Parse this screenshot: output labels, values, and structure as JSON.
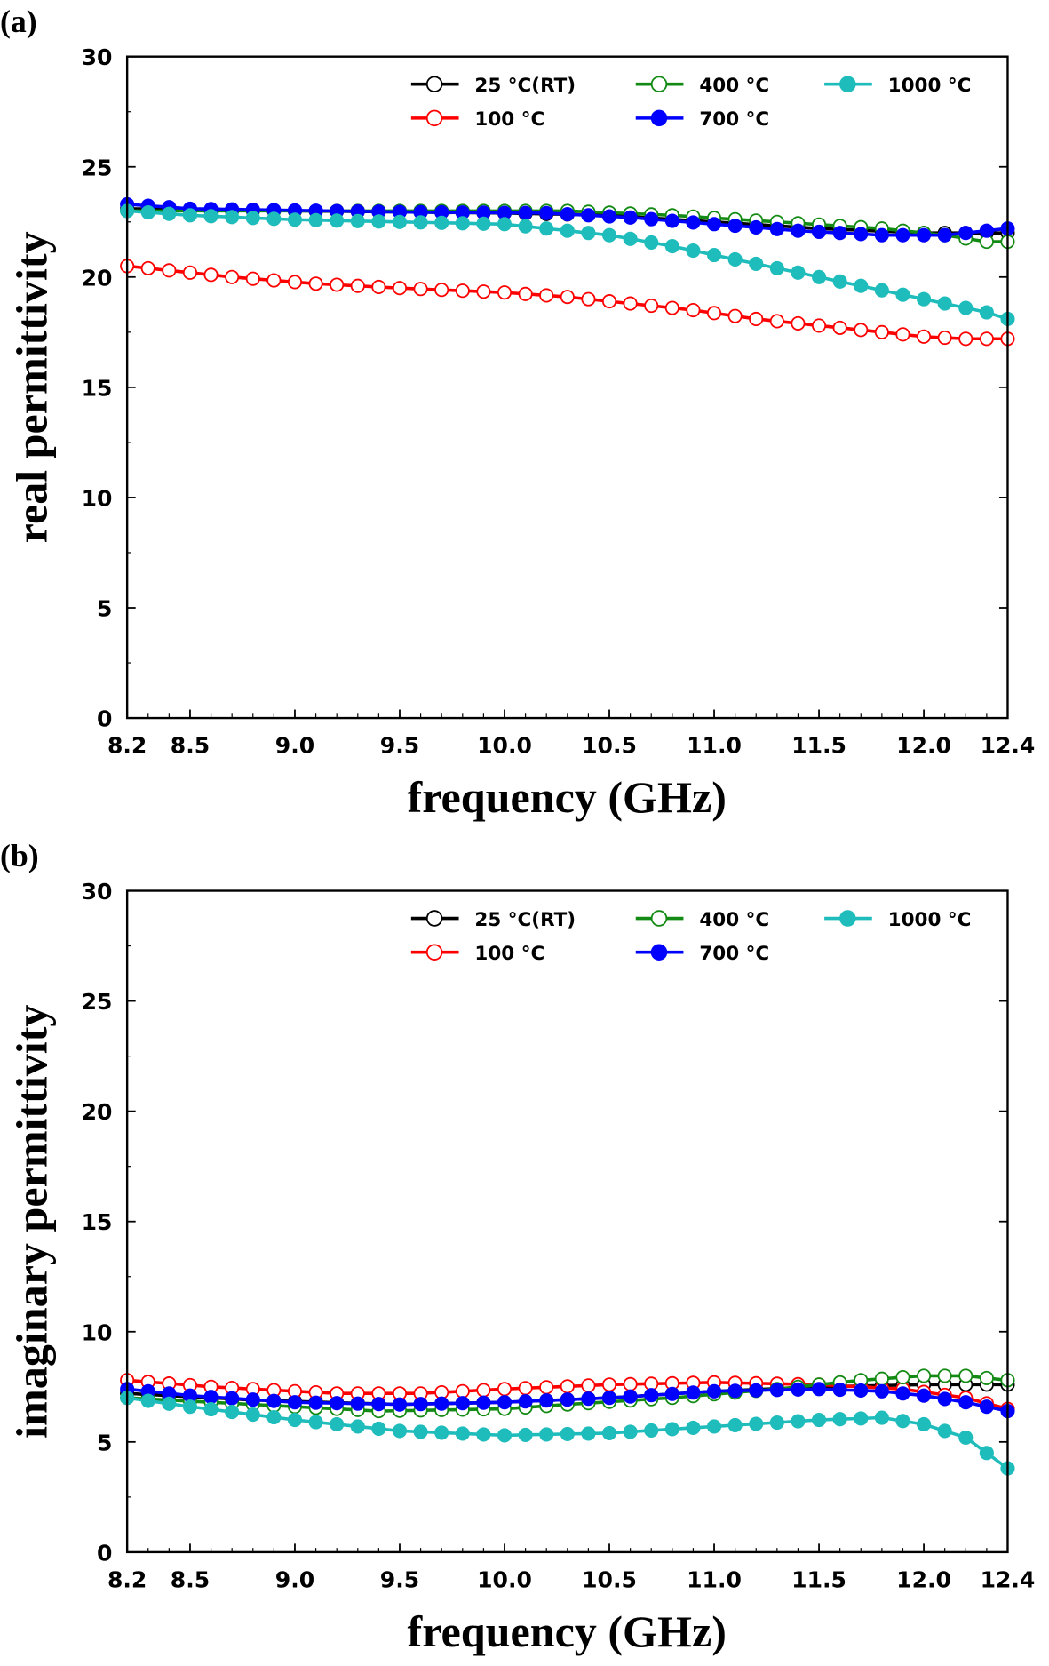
{
  "chart_data": [
    {
      "type": "line",
      "panel_label": "(a)",
      "xlabel": "frequency (GHz)",
      "ylabel": "real permittivity",
      "xlim": [
        8.2,
        12.4
      ],
      "ylim": [
        0,
        30
      ],
      "xticks": [
        "8.2",
        "8.5",
        "9.0",
        "9.5",
        "10.0",
        "10.5",
        "11.0",
        "11.5",
        "12.0",
        "12.4"
      ],
      "yticks": [
        "0",
        "5",
        "10",
        "15",
        "20",
        "25",
        "30"
      ],
      "x_step": 0.1,
      "grid": false,
      "legend_position": "top-right",
      "series": [
        {
          "name": "25 °C(RT)",
          "color": "#000000",
          "filled": false,
          "points": [
            [
              8.2,
              23.1
            ],
            [
              9.0,
              23.0
            ],
            [
              10.0,
              22.9
            ],
            [
              10.5,
              22.8
            ],
            [
              11.0,
              22.5
            ],
            [
              11.5,
              22.2
            ],
            [
              12.0,
              22.0
            ],
            [
              12.4,
              22.0
            ]
          ]
        },
        {
          "name": "100 °C",
          "color": "#ff0000",
          "filled": false,
          "points": [
            [
              8.2,
              20.5
            ],
            [
              8.4,
              20.3
            ],
            [
              8.7,
              20.0
            ],
            [
              9.1,
              19.7
            ],
            [
              9.5,
              19.5
            ],
            [
              10.0,
              19.3
            ],
            [
              10.3,
              19.1
            ],
            [
              10.6,
              18.8
            ],
            [
              10.9,
              18.5
            ],
            [
              11.2,
              18.1
            ],
            [
              11.5,
              17.8
            ],
            [
              11.8,
              17.5
            ],
            [
              12.0,
              17.3
            ],
            [
              12.2,
              17.2
            ],
            [
              12.4,
              17.2
            ]
          ]
        },
        {
          "name": "400 °C",
          "color": "#138a13",
          "filled": false,
          "points": [
            [
              8.2,
              23.0
            ],
            [
              9.0,
              23.0
            ],
            [
              10.3,
              23.0
            ],
            [
              10.8,
              22.8
            ],
            [
              11.3,
              22.5
            ],
            [
              11.8,
              22.2
            ],
            [
              12.1,
              21.9
            ],
            [
              12.3,
              21.6
            ],
            [
              12.4,
              21.6
            ]
          ]
        },
        {
          "name": "700 °C",
          "color": "#0000ff",
          "filled": true,
          "points": [
            [
              8.2,
              23.3
            ],
            [
              8.5,
              23.1
            ],
            [
              9.5,
              22.95
            ],
            [
              10.2,
              22.9
            ],
            [
              10.6,
              22.7
            ],
            [
              11.0,
              22.4
            ],
            [
              11.4,
              22.1
            ],
            [
              11.8,
              21.9
            ],
            [
              12.1,
              21.9
            ],
            [
              12.3,
              22.1
            ],
            [
              12.4,
              22.2
            ]
          ]
        },
        {
          "name": "1000 °C",
          "color": "#1fbcbc",
          "filled": true,
          "points": [
            [
              8.2,
              23.0
            ],
            [
              8.5,
              22.8
            ],
            [
              9.0,
              22.6
            ],
            [
              9.5,
              22.5
            ],
            [
              10.0,
              22.4
            ],
            [
              10.2,
              22.2
            ],
            [
              10.5,
              21.9
            ],
            [
              10.8,
              21.4
            ],
            [
              11.0,
              21.0
            ],
            [
              11.3,
              20.4
            ],
            [
              11.6,
              19.8
            ],
            [
              11.9,
              19.2
            ],
            [
              12.1,
              18.8
            ],
            [
              12.3,
              18.4
            ],
            [
              12.4,
              18.1
            ]
          ]
        }
      ]
    },
    {
      "type": "line",
      "panel_label": "(b)",
      "xlabel": "frequency (GHz)",
      "ylabel": "imaginary permittivity",
      "xlim": [
        8.2,
        12.4
      ],
      "ylim": [
        0,
        30
      ],
      "xticks": [
        "8.2",
        "8.5",
        "9.0",
        "9.5",
        "10.0",
        "10.5",
        "11.0",
        "11.5",
        "12.0",
        "12.4"
      ],
      "yticks": [
        "0",
        "5",
        "10",
        "15",
        "20",
        "25",
        "30"
      ],
      "x_step": 0.1,
      "grid": false,
      "legend_position": "top-right",
      "series": [
        {
          "name": "25 °C(RT)",
          "color": "#000000",
          "filled": false,
          "points": [
            [
              8.2,
              7.2
            ],
            [
              8.8,
              6.9
            ],
            [
              9.5,
              6.7
            ],
            [
              10.0,
              6.8
            ],
            [
              10.5,
              7.0
            ],
            [
              11.0,
              7.3
            ],
            [
              11.5,
              7.5
            ],
            [
              12.0,
              7.6
            ],
            [
              12.4,
              7.6
            ]
          ]
        },
        {
          "name": "100 °C",
          "color": "#ff0000",
          "filled": false,
          "points": [
            [
              8.2,
              7.8
            ],
            [
              8.6,
              7.5
            ],
            [
              9.2,
              7.2
            ],
            [
              9.6,
              7.2
            ],
            [
              10.0,
              7.4
            ],
            [
              10.5,
              7.6
            ],
            [
              11.0,
              7.7
            ],
            [
              11.5,
              7.6
            ],
            [
              11.9,
              7.4
            ],
            [
              12.2,
              7.0
            ],
            [
              12.4,
              6.5
            ]
          ]
        },
        {
          "name": "400 °C",
          "color": "#138a13",
          "filled": false,
          "points": [
            [
              8.2,
              7.0
            ],
            [
              8.8,
              6.7
            ],
            [
              9.4,
              6.4
            ],
            [
              10.0,
              6.5
            ],
            [
              10.3,
              6.7
            ],
            [
              10.8,
              7.0
            ],
            [
              11.3,
              7.4
            ],
            [
              11.7,
              7.8
            ],
            [
              12.0,
              8.0
            ],
            [
              12.2,
              8.0
            ],
            [
              12.4,
              7.8
            ]
          ]
        },
        {
          "name": "700 °C",
          "color": "#0000ff",
          "filled": true,
          "points": [
            [
              8.2,
              7.4
            ],
            [
              8.5,
              7.1
            ],
            [
              9.0,
              6.8
            ],
            [
              9.5,
              6.7
            ],
            [
              10.0,
              6.8
            ],
            [
              10.5,
              7.0
            ],
            [
              11.0,
              7.3
            ],
            [
              11.5,
              7.4
            ],
            [
              11.8,
              7.3
            ],
            [
              12.0,
              7.1
            ],
            [
              12.2,
              6.8
            ],
            [
              12.4,
              6.4
            ]
          ]
        },
        {
          "name": "1000 °C",
          "color": "#1fbcbc",
          "filled": true,
          "points": [
            [
              8.2,
              7.0
            ],
            [
              8.5,
              6.6
            ],
            [
              9.0,
              6.0
            ],
            [
              9.5,
              5.5
            ],
            [
              10.0,
              5.3
            ],
            [
              10.5,
              5.4
            ],
            [
              11.0,
              5.7
            ],
            [
              11.5,
              6.0
            ],
            [
              11.8,
              6.1
            ],
            [
              12.0,
              5.8
            ],
            [
              12.2,
              5.2
            ],
            [
              12.3,
              4.5
            ],
            [
              12.4,
              3.8
            ]
          ]
        }
      ]
    }
  ]
}
